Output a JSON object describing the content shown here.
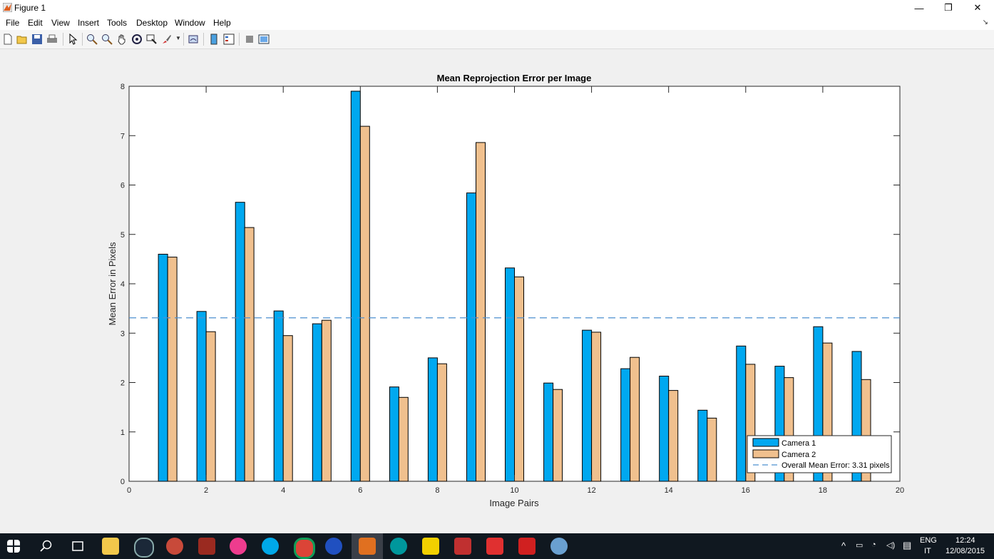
{
  "window": {
    "title": "Figure 1",
    "controls": [
      "—",
      "❐",
      "✕"
    ]
  },
  "menu": {
    "items": [
      "File",
      "Edit",
      "View",
      "Insert",
      "Tools",
      "Desktop",
      "Window",
      "Help"
    ]
  },
  "toolbar": {
    "icons": [
      "new-figure-icon",
      "open-icon",
      "save-icon",
      "print-icon",
      "pointer-icon",
      "zoom-in-icon",
      "zoom-out-icon",
      "pan-icon",
      "rotate-icon",
      "data-cursor-icon",
      "brush-icon",
      "link-icon",
      "colorbar-icon",
      "legend-icon",
      "hide-plot-tools-icon",
      "show-plot-tools-icon"
    ]
  },
  "chart_data": {
    "type": "bar",
    "title": "Mean Reprojection Error per Image",
    "xlabel": "Image Pairs",
    "ylabel": "Mean Error in Pixels",
    "xlim": [
      0,
      20
    ],
    "ylim": [
      0,
      8
    ],
    "xticks": [
      "0",
      "2",
      "4",
      "6",
      "8",
      "10",
      "12",
      "14",
      "16",
      "18",
      "20"
    ],
    "yticks": [
      "0",
      "1",
      "2",
      "3",
      "4",
      "5",
      "6",
      "7",
      "8"
    ],
    "x": [
      1,
      2,
      3,
      4,
      5,
      6,
      7,
      8,
      9,
      10,
      11,
      12,
      13,
      14,
      15,
      16,
      17,
      18,
      19
    ],
    "series": [
      {
        "name": "Camera 1",
        "color": "#00a8f0",
        "values": [
          4.6,
          3.44,
          5.65,
          3.45,
          3.19,
          7.9,
          1.91,
          2.5,
          5.84,
          4.32,
          1.99,
          3.06,
          2.28,
          2.13,
          1.44,
          2.74,
          2.33,
          3.13,
          2.63
        ]
      },
      {
        "name": "Camera 2",
        "color": "#f0c08e",
        "values": [
          4.54,
          3.03,
          5.14,
          2.95,
          3.26,
          7.19,
          1.7,
          2.38,
          6.86,
          4.14,
          1.86,
          3.02,
          2.51,
          1.84,
          1.28,
          2.37,
          2.1,
          2.8,
          2.06
        ]
      }
    ],
    "mean_line": {
      "value": 3.31,
      "label": "Overall Mean Error: 3.31 pixels",
      "color": "#4d90d0"
    },
    "legend_position": "bottom-right",
    "grid": false
  },
  "taskbar": {
    "icons": [
      "windows-start-icon",
      "search-icon",
      "task-view-icon",
      "file-explorer-icon",
      "steam-icon",
      "app-icon",
      "app-icon",
      "itunes-icon",
      "skype-icon",
      "chrome-icon",
      "app-icon",
      "matlab-icon",
      "arduino-icon",
      "app-icon",
      "app-icon",
      "autocad-icon",
      "autocad-icon",
      "paint-icon"
    ],
    "language": "ENG",
    "layout": "IT",
    "time": "12:24",
    "date": "12/08/2015"
  }
}
